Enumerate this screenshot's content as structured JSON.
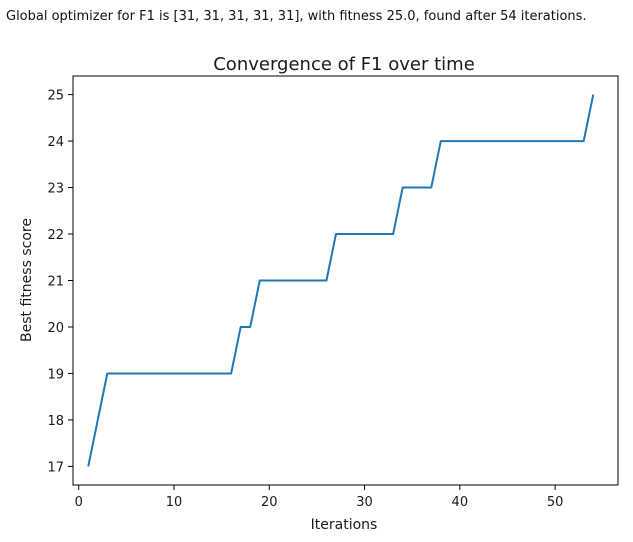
{
  "output": {
    "text": "Global optimizer for F1 is [31, 31, 31, 31, 31], with fitness 25.0, found after 54 iterations."
  },
  "chart_data": {
    "type": "line",
    "title": "Convergence of F1 over time",
    "xlabel": "Iterations",
    "ylabel": "Best fitness score",
    "xlim": [
      -0.6,
      56.6
    ],
    "ylim": [
      16.6,
      25.4
    ],
    "xticks": [
      0,
      10,
      20,
      30,
      40,
      50
    ],
    "yticks": [
      17,
      18,
      19,
      20,
      21,
      22,
      23,
      24,
      25
    ],
    "grid": false,
    "series": [
      {
        "color": "#1f77b4",
        "x": [
          1,
          3,
          16,
          17,
          18,
          19,
          26,
          27,
          33,
          34,
          37,
          38,
          53,
          54
        ],
        "y": [
          17,
          19,
          19,
          20,
          20,
          21,
          21,
          22,
          22,
          23,
          23,
          24,
          24,
          25
        ]
      }
    ]
  }
}
